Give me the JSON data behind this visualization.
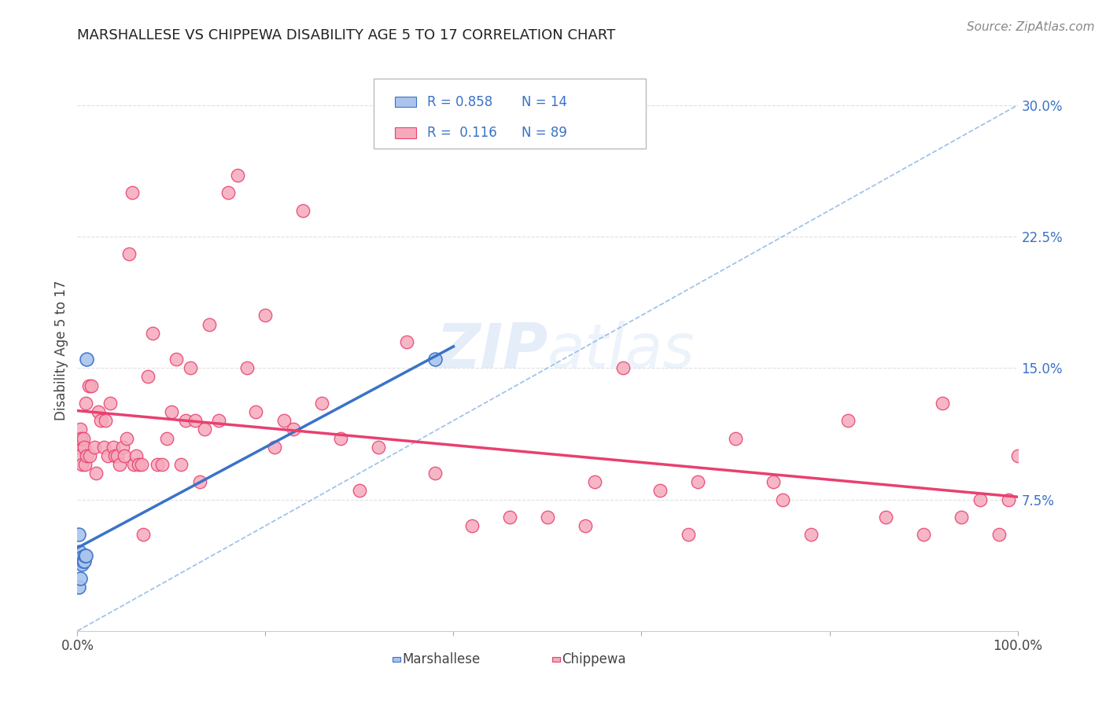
{
  "title": "MARSHALLESE VS CHIPPEWA DISABILITY AGE 5 TO 17 CORRELATION CHART",
  "source": "Source: ZipAtlas.com",
  "ylabel": "Disability Age 5 to 17",
  "ytick_labels": [
    "7.5%",
    "15.0%",
    "22.5%",
    "30.0%"
  ],
  "ytick_values": [
    0.075,
    0.15,
    0.225,
    0.3
  ],
  "xlim": [
    0.0,
    1.0
  ],
  "ylim": [
    0.0,
    0.32
  ],
  "marshallese_color": "#aac4ee",
  "chippewa_color": "#f5aabb",
  "marshallese_line_color": "#3a72c8",
  "chippewa_line_color": "#e84070",
  "diagonal_color": "#90b8e8",
  "grid_color": "#e0e0e0",
  "marshallese_x": [
    0.001,
    0.001,
    0.002,
    0.003,
    0.003,
    0.004,
    0.005,
    0.005,
    0.006,
    0.007,
    0.008,
    0.009,
    0.01,
    0.38
  ],
  "marshallese_y": [
    0.025,
    0.055,
    0.045,
    0.03,
    0.04,
    0.04,
    0.038,
    0.042,
    0.04,
    0.04,
    0.043,
    0.043,
    0.155,
    0.155
  ],
  "chippewa_x": [
    0.001,
    0.002,
    0.003,
    0.003,
    0.004,
    0.005,
    0.006,
    0.007,
    0.008,
    0.009,
    0.01,
    0.012,
    0.013,
    0.015,
    0.018,
    0.02,
    0.022,
    0.025,
    0.028,
    0.03,
    0.032,
    0.035,
    0.038,
    0.04,
    0.042,
    0.045,
    0.048,
    0.05,
    0.052,
    0.055,
    0.058,
    0.06,
    0.062,
    0.065,
    0.068,
    0.07,
    0.075,
    0.08,
    0.085,
    0.09,
    0.095,
    0.1,
    0.105,
    0.11,
    0.115,
    0.12,
    0.125,
    0.13,
    0.135,
    0.14,
    0.15,
    0.16,
    0.17,
    0.18,
    0.19,
    0.2,
    0.21,
    0.22,
    0.23,
    0.24,
    0.26,
    0.28,
    0.3,
    0.32,
    0.35,
    0.38,
    0.42,
    0.46,
    0.5,
    0.54,
    0.58,
    0.62,
    0.66,
    0.7,
    0.74,
    0.78,
    0.82,
    0.86,
    0.9,
    0.92,
    0.94,
    0.96,
    0.98,
    0.99,
    1.0,
    0.55,
    0.65,
    0.75
  ],
  "chippewa_y": [
    0.105,
    0.11,
    0.1,
    0.115,
    0.11,
    0.095,
    0.11,
    0.105,
    0.095,
    0.13,
    0.1,
    0.14,
    0.1,
    0.14,
    0.105,
    0.09,
    0.125,
    0.12,
    0.105,
    0.12,
    0.1,
    0.13,
    0.105,
    0.1,
    0.1,
    0.095,
    0.105,
    0.1,
    0.11,
    0.215,
    0.25,
    0.095,
    0.1,
    0.095,
    0.095,
    0.055,
    0.145,
    0.17,
    0.095,
    0.095,
    0.11,
    0.125,
    0.155,
    0.095,
    0.12,
    0.15,
    0.12,
    0.085,
    0.115,
    0.175,
    0.12,
    0.25,
    0.26,
    0.15,
    0.125,
    0.18,
    0.105,
    0.12,
    0.115,
    0.24,
    0.13,
    0.11,
    0.08,
    0.105,
    0.165,
    0.09,
    0.06,
    0.065,
    0.065,
    0.06,
    0.15,
    0.08,
    0.085,
    0.11,
    0.085,
    0.055,
    0.12,
    0.065,
    0.055,
    0.13,
    0.065,
    0.075,
    0.055,
    0.075,
    0.1,
    0.085,
    0.055,
    0.075
  ]
}
